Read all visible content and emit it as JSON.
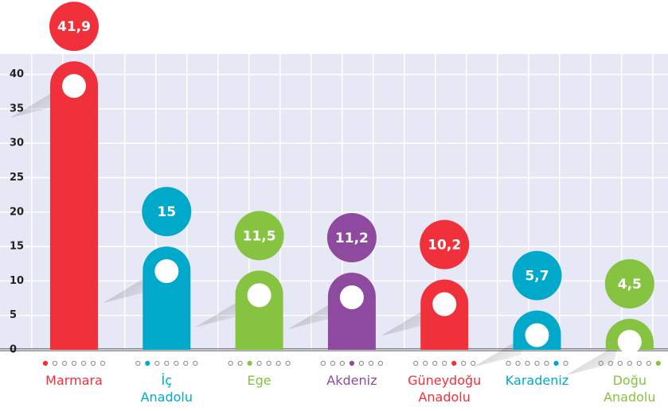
{
  "chart_data": {
    "type": "bar",
    "categories": [
      "Marmara",
      "İç Anadolu",
      "Ege",
      "Akdeniz",
      "Güneydoğu Anadolu",
      "Karadeniz",
      "Doğu Anadolu"
    ],
    "values": [
      41.9,
      15,
      11.5,
      11.2,
      10.2,
      5.7,
      4.5
    ],
    "value_labels": [
      "41,9",
      "15",
      "11,5",
      "11,2",
      "10,2",
      "5,7",
      "4,5"
    ],
    "colors": [
      "#f0303a",
      "#00a9c9",
      "#86c340",
      "#8e4a9f",
      "#f0303a",
      "#00a9c9",
      "#86c340"
    ],
    "ylim": [
      0,
      48.5
    ],
    "yticks": [
      0,
      5,
      10,
      15,
      20,
      25,
      30,
      35,
      40
    ],
    "grid": true
  }
}
